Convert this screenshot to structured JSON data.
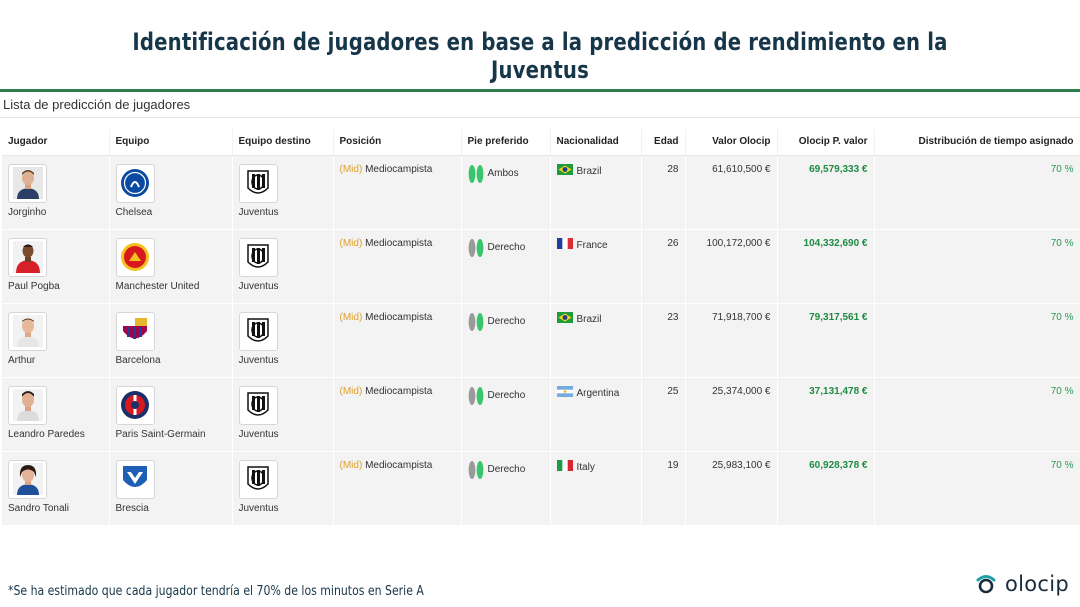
{
  "title": "Identificación de jugadores en base a la predicción de rendimiento en la Juventus",
  "list_title": "Lista de predicción de jugadores",
  "columns": [
    "Jugador",
    "Equipo",
    "Equipo destino",
    "Posición",
    "Pie preferido",
    "Nacionalidad",
    "Edad",
    "Valor Olocip",
    "Olocip P. valor",
    "Distribución de tiempo asignado"
  ],
  "rows": [
    {
      "player": "Jorginho",
      "team": "Chelsea",
      "dest": "Juventus",
      "pos_tag": "(Mid)",
      "pos": "Mediocampista",
      "foot": "Ambos",
      "nat": "Brazil",
      "age": "28",
      "value": "61,610,500 €",
      "pvalue": "69,579,333 €",
      "time": "70 %"
    },
    {
      "player": "Paul Pogba",
      "team": "Manchester United",
      "dest": "Juventus",
      "pos_tag": "(Mid)",
      "pos": "Mediocampista",
      "foot": "Derecho",
      "nat": "France",
      "age": "26",
      "value": "100,172,000 €",
      "pvalue": "104,332,690 €",
      "time": "70 %"
    },
    {
      "player": "Arthur",
      "team": "Barcelona",
      "dest": "Juventus",
      "pos_tag": "(Mid)",
      "pos": "Mediocampista",
      "foot": "Derecho",
      "nat": "Brazil",
      "age": "23",
      "value": "71,918,700 €",
      "pvalue": "79,317,561 €",
      "time": "70 %"
    },
    {
      "player": "Leandro Paredes",
      "team": "Paris Saint-Germain",
      "dest": "Juventus",
      "pos_tag": "(Mid)",
      "pos": "Mediocampista",
      "foot": "Derecho",
      "nat": "Argentina",
      "age": "25",
      "value": "25,374,000 €",
      "pvalue": "37,131,478 €",
      "time": "70 %"
    },
    {
      "player": "Sandro Tonali",
      "team": "Brescia",
      "dest": "Juventus",
      "pos_tag": "(Mid)",
      "pos": "Mediocampista",
      "foot": "Derecho",
      "nat": "Italy",
      "age": "19",
      "value": "25,983,100 €",
      "pvalue": "60,928,378 €",
      "time": "70 %"
    }
  ],
  "footnote": "*Se ha estimado que cada jugador tendría el 70% de los minutos en Serie A",
  "brand": "olocip",
  "colors": {
    "title": "#17364a",
    "accent_green": "#2e7d4f",
    "value_green": "#1f8a44",
    "position_tag": "#e0a028"
  }
}
